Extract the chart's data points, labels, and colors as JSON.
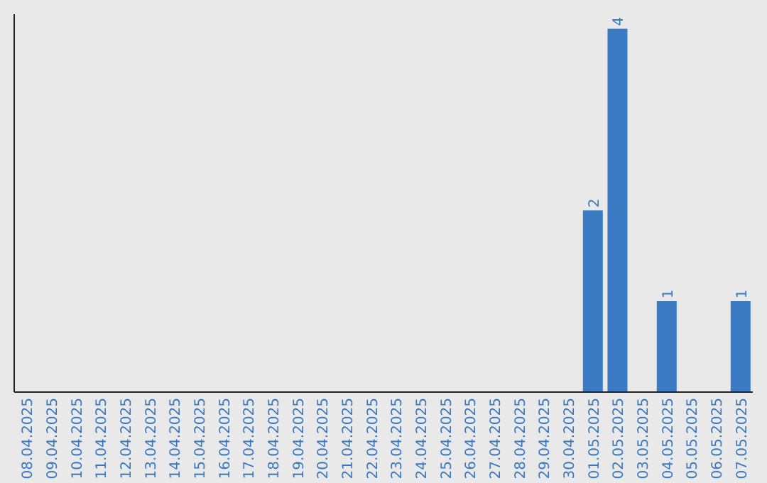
{
  "chart_data": {
    "type": "bar",
    "categories": [
      "08.04.2025",
      "09.04.2025",
      "10.04.2025",
      "11.04.2025",
      "12.04.2025",
      "13.04.2025",
      "14.04.2025",
      "15.04.2025",
      "16.04.2025",
      "17.04.2025",
      "18.04.2025",
      "19.04.2025",
      "20.04.2025",
      "21.04.2025",
      "22.04.2025",
      "23.04.2025",
      "24.04.2025",
      "25.04.2025",
      "26.04.2025",
      "27.04.2025",
      "28.04.2025",
      "29.04.2025",
      "30.04.2025",
      "01.05.2025",
      "02.05.2025",
      "03.05.2025",
      "04.05.2025",
      "05.05.2025",
      "06.05.2025",
      "07.05.2025"
    ],
    "values": [
      null,
      null,
      null,
      null,
      null,
      null,
      null,
      null,
      null,
      null,
      null,
      null,
      null,
      null,
      null,
      null,
      null,
      null,
      null,
      null,
      null,
      null,
      null,
      2,
      4,
      null,
      1,
      null,
      null,
      1
    ],
    "data_labels": true,
    "color": "#3b7bc4",
    "grid": false,
    "legend": false
  }
}
